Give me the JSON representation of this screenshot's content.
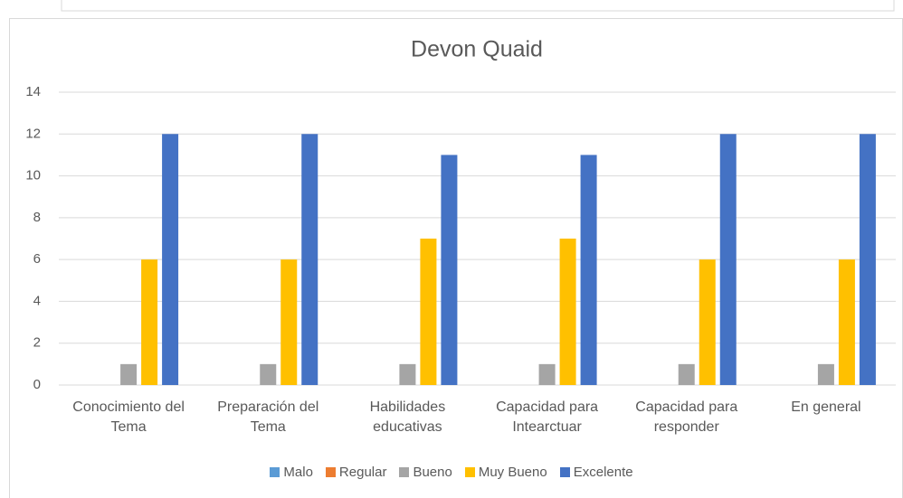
{
  "chart_data": {
    "type": "bar",
    "title": "Devon Quaid",
    "categories": [
      "Conocimiento del Tema",
      "Preparación del Tema",
      "Habilidades educativas",
      "Capacidad para Intearctuar",
      "Capacidad para responder",
      "En general"
    ],
    "series": [
      {
        "name": "Malo",
        "color": "#5b9bd5",
        "values": [
          0,
          0,
          0,
          0,
          0,
          0
        ]
      },
      {
        "name": "Regular",
        "color": "#ed7d31",
        "values": [
          0,
          0,
          0,
          0,
          0,
          0
        ]
      },
      {
        "name": "Bueno",
        "color": "#a5a5a5",
        "values": [
          1,
          1,
          1,
          1,
          1,
          1
        ]
      },
      {
        "name": "Muy Bueno",
        "color": "#ffc000",
        "values": [
          6,
          6,
          7,
          7,
          6,
          6
        ]
      },
      {
        "name": "Excelente",
        "color": "#4472c4",
        "values": [
          12,
          12,
          11,
          11,
          12,
          12
        ]
      }
    ],
    "ylim": [
      0,
      14
    ],
    "yticks": [
      0,
      2,
      4,
      6,
      8,
      10,
      12,
      14
    ],
    "grid": true,
    "legend": "bottom"
  }
}
